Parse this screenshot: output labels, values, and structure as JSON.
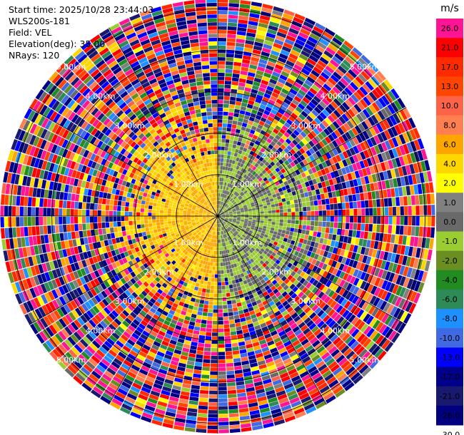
{
  "info": {
    "start_time": "Start time: 2025/10/28 23:44:03",
    "instrument": "WLS200s-181",
    "field": "Field: VEL",
    "elevation": "Elevation(deg): 35.00",
    "nrays": "NRays: 120"
  },
  "chart_data": {
    "type": "heatmap",
    "projection": "polar-ppi",
    "field": "VEL",
    "unit": "m/s",
    "n_rays": 120,
    "elevation_deg": 35.0,
    "range_rings_km": [
      1.0,
      2.0,
      3.0,
      4.0,
      5.0
    ],
    "ring_labels": [
      "1.00km",
      "2.00km",
      "3.00km",
      "4.00km",
      "5.00km"
    ],
    "colorbar": {
      "unit_label": "m/s",
      "ticks": [
        "26.0",
        "21.0",
        "17.0",
        "13.0",
        "10.0",
        "8.0",
        "6.0",
        "4.0",
        "2.0",
        "1.0",
        "0.0",
        "-1.0",
        "-2.0",
        "-4.0",
        "-6.0",
        "-8.0",
        "-10.0",
        "-13.0",
        "-17.0",
        "-21.0",
        "-26.0",
        "-30.0"
      ],
      "colors": [
        "#ff1493",
        "#ff0000",
        "#ff2a00",
        "#ff4500",
        "#ff6347",
        "#ff7f50",
        "#ffa500",
        "#ffd700",
        "#ffff00",
        "#808080",
        "#696969",
        "#9acd32",
        "#6b8e23",
        "#228b22",
        "#2e8b57",
        "#1e90ff",
        "#4169e1",
        "#0000ff",
        "#00008b",
        "#191970",
        "#000080"
      ]
    },
    "near_field": {
      "west_half_value_range": [
        2.0,
        6.0
      ],
      "east_half_value_range": [
        -2.0,
        0.0
      ],
      "noise_start_km": 2.2
    }
  }
}
